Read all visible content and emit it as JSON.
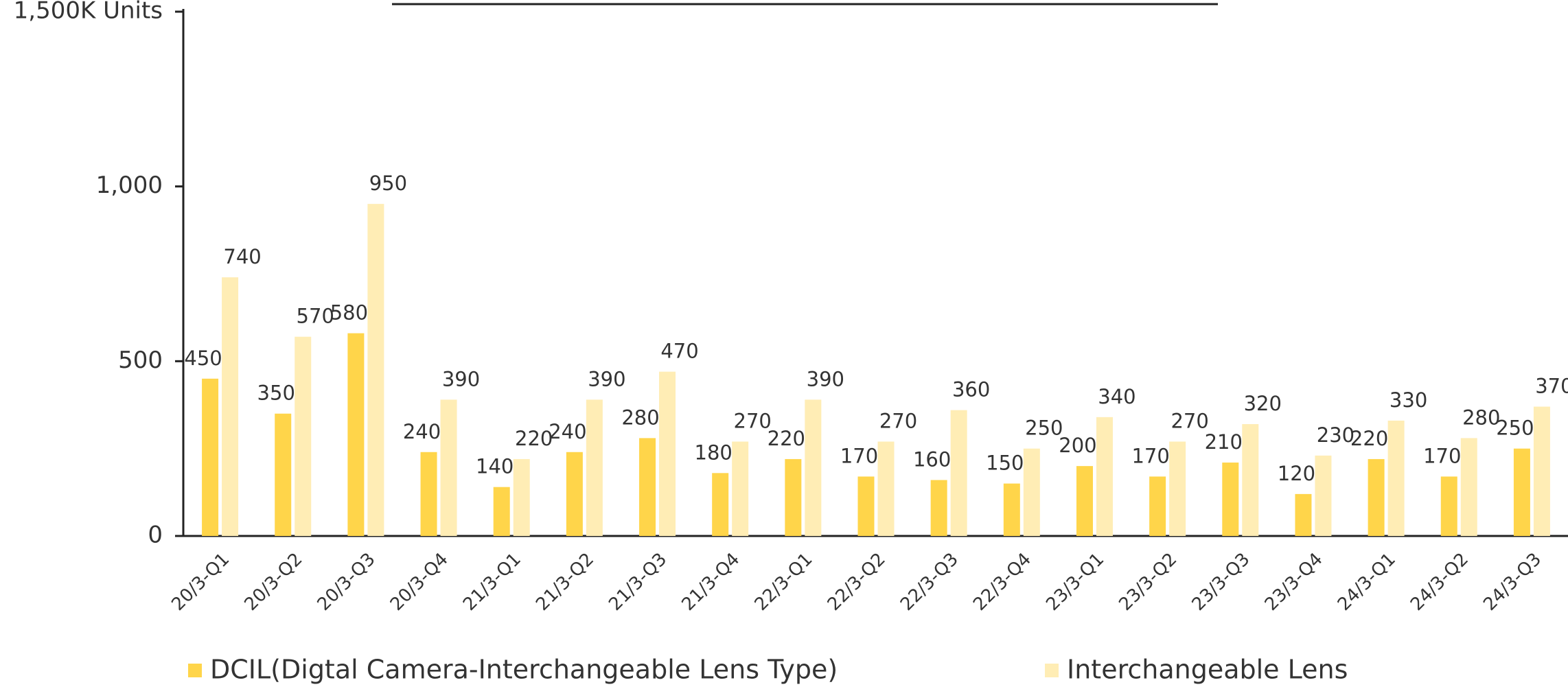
{
  "chart_data": {
    "type": "bar",
    "categories": [
      "20/3-Q1",
      "20/3-Q2",
      "20/3-Q3",
      "20/3-Q4",
      "21/3-Q1",
      "21/3-Q2",
      "21/3-Q3",
      "21/3-Q4",
      "22/3-Q1",
      "22/3-Q2",
      "22/3-Q3",
      "22/3-Q4",
      "23/3-Q1",
      "23/3-Q2",
      "23/3-Q3",
      "23/3-Q4",
      "24/3-Q1",
      "24/3-Q2",
      "24/3-Q3"
    ],
    "series": [
      {
        "name": "DCIL(Digtal Camera-Interchangeable Lens Type)",
        "color": "#ffd54a",
        "values": [
          450,
          350,
          580,
          240,
          140,
          240,
          280,
          180,
          220,
          170,
          160,
          150,
          200,
          170,
          210,
          120,
          220,
          170,
          250
        ]
      },
      {
        "name": "Interchangeable Lens",
        "color": "#ffedb5",
        "values": [
          740,
          570,
          950,
          390,
          220,
          390,
          470,
          270,
          390,
          270,
          360,
          250,
          340,
          270,
          320,
          230,
          330,
          280,
          370
        ]
      }
    ],
    "ylim": [
      0,
      1500
    ],
    "yticks": [
      0,
      500,
      {
        "value": 1000,
        "label": "1,000"
      },
      {
        "value": 1500,
        "label": "1,500K Units"
      }
    ]
  }
}
